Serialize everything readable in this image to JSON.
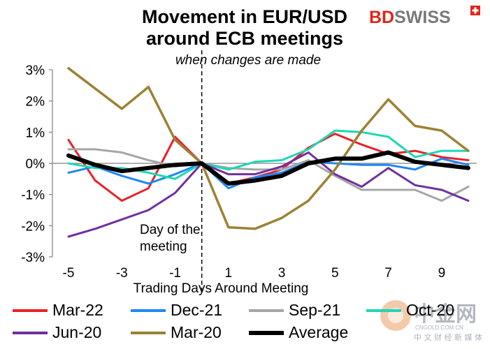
{
  "brand": {
    "name": "BDSWISS",
    "colors": {
      "bd": "#e2231a",
      "swiss": "#7a7a7a",
      "mark": "#e2231a"
    }
  },
  "watermark": {
    "name": "中金网",
    "site": "CNGOLD.COM.CN",
    "tagline": "中 文 财 经 新 媒 体",
    "colors": {
      "logo": "#e8a06a",
      "text": "#9aa1aa"
    }
  },
  "chart_data": {
    "type": "line",
    "title": [
      "Movement in EUR/USD",
      "around ECB meetings"
    ],
    "subtitle": "when changes are made",
    "xlabel": "Trading Days Around Meeting",
    "ylabel": "",
    "x": [
      -5,
      -4,
      -3,
      -2,
      -1,
      0,
      1,
      2,
      3,
      4,
      5,
      6,
      7,
      8,
      9,
      10
    ],
    "xlim": [
      -5,
      10
    ],
    "ylim": [
      -3,
      3
    ],
    "x_ticks": [
      -5,
      -3,
      -1,
      1,
      3,
      5,
      7,
      9
    ],
    "x_tick_labels": [
      "-5",
      "-3",
      "-1",
      "1",
      "3",
      "5",
      "7",
      "9"
    ],
    "y_ticks": [
      -3,
      -2,
      -1,
      0,
      1,
      2,
      3
    ],
    "y_tick_labels": [
      "-3%",
      "-2%",
      "-1%",
      "0%",
      "1%",
      "2%",
      "3%"
    ],
    "grid": false,
    "legend_position": "bottom",
    "vline": {
      "x": 0,
      "style": "dashed",
      "label": [
        "Day of the",
        "meeting"
      ]
    },
    "series": [
      {
        "name": "Mar-22",
        "color": "#e8222a",
        "width": 3,
        "values": [
          0.75,
          -0.55,
          -1.2,
          -0.8,
          0.85,
          0.0,
          -0.65,
          -0.45,
          -0.2,
          0.5,
          0.95,
          0.6,
          0.3,
          0.4,
          0.2,
          0.1
        ]
      },
      {
        "name": "Dec-21",
        "color": "#1e88f5",
        "width": 3,
        "values": [
          -0.3,
          -0.1,
          -0.4,
          -0.65,
          -0.35,
          0.0,
          -0.8,
          -0.45,
          -0.3,
          0.05,
          0.0,
          -0.05,
          -0.05,
          -0.2,
          0.15,
          -0.05
        ]
      },
      {
        "name": "Sep-21",
        "color": "#a6a6a6",
        "width": 3,
        "values": [
          0.45,
          0.45,
          0.35,
          0.1,
          -0.1,
          0.0,
          -0.15,
          -0.2,
          -0.2,
          0.1,
          -0.4,
          -0.85,
          -0.85,
          -0.85,
          -1.2,
          -0.75
        ]
      },
      {
        "name": "Oct-20",
        "color": "#1fd7b4",
        "width": 3,
        "values": [
          0.0,
          -0.15,
          -0.15,
          -0.3,
          -0.5,
          0.0,
          -0.2,
          0.05,
          0.1,
          0.45,
          1.05,
          1.0,
          0.85,
          0.2,
          0.4,
          0.4
        ]
      },
      {
        "name": "Jun-20",
        "color": "#7030a0",
        "width": 3,
        "values": [
          -2.35,
          -2.1,
          -1.8,
          -1.5,
          -0.95,
          0.0,
          -0.35,
          -0.35,
          -0.1,
          0.35,
          -0.35,
          -0.75,
          -0.15,
          -0.7,
          -0.85,
          -1.2
        ]
      },
      {
        "name": "Mar-20",
        "color": "#9c8235",
        "width": 3.5,
        "values": [
          3.05,
          2.4,
          1.75,
          2.45,
          0.75,
          0.0,
          -2.05,
          -2.1,
          -1.75,
          -1.2,
          -0.2,
          1.05,
          2.05,
          1.2,
          1.05,
          0.4
        ]
      },
      {
        "name": "Average",
        "color": "#000000",
        "width": 6,
        "values": [
          0.25,
          -0.05,
          -0.25,
          -0.15,
          -0.05,
          0.0,
          -0.65,
          -0.55,
          -0.4,
          0.0,
          0.15,
          0.15,
          0.35,
          0.05,
          -0.05,
          -0.15
        ]
      }
    ]
  }
}
